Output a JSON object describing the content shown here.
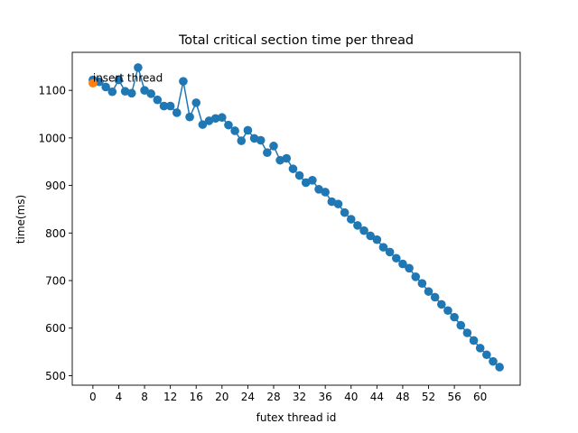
{
  "chart_data": {
    "type": "line",
    "title": "Total critical section time per thread",
    "xlabel": "futex thread id",
    "ylabel": "time(ms)",
    "xlim": [
      -3.2,
      66.2
    ],
    "ylim": [
      480,
      1180
    ],
    "xticks": [
      0,
      4,
      8,
      12,
      16,
      20,
      24,
      28,
      32,
      36,
      40,
      44,
      48,
      52,
      56,
      60
    ],
    "yticks": [
      500,
      600,
      700,
      800,
      900,
      1000,
      1100
    ],
    "grid": false,
    "series": [
      {
        "color": "#1f77b4",
        "marker": "circle",
        "x": [
          0,
          1,
          2,
          3,
          4,
          5,
          6,
          7,
          8,
          9,
          10,
          11,
          12,
          13,
          14,
          15,
          16,
          17,
          18,
          19,
          20,
          21,
          22,
          23,
          24,
          25,
          26,
          27,
          28,
          29,
          30,
          31,
          32,
          33,
          34,
          35,
          36,
          37,
          38,
          39,
          40,
          41,
          42,
          43,
          44,
          45,
          46,
          47,
          48,
          49,
          50,
          51,
          52,
          53,
          54,
          55,
          56,
          57,
          58,
          59,
          60,
          61,
          62,
          63
        ],
        "y": [
          1122,
          1118,
          1107,
          1097,
          1122,
          1098,
          1094,
          1148,
          1100,
          1093,
          1080,
          1067,
          1067,
          1053,
          1119,
          1044,
          1074,
          1028,
          1036,
          1041,
          1043,
          1027,
          1015,
          994,
          1016,
          999,
          995,
          969,
          983,
          953,
          957,
          935,
          921,
          906,
          911,
          892,
          886,
          866,
          861,
          843,
          829,
          816,
          805,
          794,
          786,
          770,
          760,
          747,
          735,
          726,
          708,
          694,
          677,
          665,
          650,
          637,
          623,
          606,
          590,
          574,
          558,
          544,
          530,
          518
        ]
      },
      {
        "color": "#ff7f0e",
        "marker": "circle",
        "x": [
          0
        ],
        "y": [
          1115
        ]
      }
    ],
    "annotations": [
      {
        "text": "insert thread",
        "x": 0,
        "y": 1115
      }
    ]
  }
}
